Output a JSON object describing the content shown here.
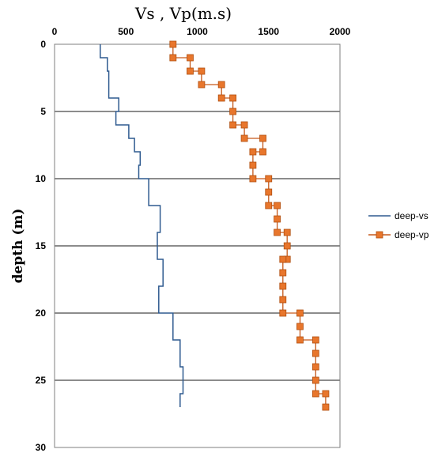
{
  "chart_data": {
    "type": "line",
    "title": "Vs , Vp(m.s)",
    "ylabel": "depth (m)",
    "xlabel": "",
    "x_axis_position": "top",
    "y_inverted": true,
    "xlim": [
      0,
      2000
    ],
    "ylim": [
      0,
      30
    ],
    "x_ticks": [
      "0",
      "500",
      "1000",
      "1500",
      "2000"
    ],
    "y_ticks": [
      "0",
      "5",
      "10",
      "15",
      "20",
      "25",
      "30"
    ],
    "grid": "horizontal major lines",
    "legend_position": "right",
    "series": [
      {
        "name": "deep-vs",
        "color": "#2e5a8f",
        "marker": "none",
        "points": [
          [
            320,
            0
          ],
          [
            320,
            1
          ],
          [
            370,
            1
          ],
          [
            370,
            2
          ],
          [
            380,
            2
          ],
          [
            380,
            3
          ],
          [
            380,
            4
          ],
          [
            450,
            4
          ],
          [
            450,
            5
          ],
          [
            430,
            5
          ],
          [
            430,
            6
          ],
          [
            520,
            6
          ],
          [
            520,
            7
          ],
          [
            560,
            7
          ],
          [
            560,
            8
          ],
          [
            600,
            8
          ],
          [
            600,
            9
          ],
          [
            590,
            9
          ],
          [
            590,
            10
          ],
          [
            660,
            10
          ],
          [
            660,
            12
          ],
          [
            740,
            12
          ],
          [
            740,
            14
          ],
          [
            720,
            14
          ],
          [
            720,
            16
          ],
          [
            760,
            16
          ],
          [
            760,
            18
          ],
          [
            730,
            18
          ],
          [
            730,
            20
          ],
          [
            830,
            20
          ],
          [
            830,
            22
          ],
          [
            880,
            22
          ],
          [
            880,
            24
          ],
          [
            900,
            24
          ],
          [
            900,
            26
          ],
          [
            880,
            26
          ],
          [
            880,
            27
          ]
        ]
      },
      {
        "name": "deep-vp",
        "color": "#c6591b",
        "marker": "square",
        "points": [
          [
            830,
            0
          ],
          [
            830,
            1
          ],
          [
            950,
            1
          ],
          [
            950,
            2
          ],
          [
            1030,
            2
          ],
          [
            1030,
            3
          ],
          [
            1170,
            3
          ],
          [
            1170,
            4
          ],
          [
            1250,
            4
          ],
          [
            1250,
            5
          ],
          [
            1250,
            6
          ],
          [
            1330,
            6
          ],
          [
            1330,
            7
          ],
          [
            1460,
            7
          ],
          [
            1460,
            8
          ],
          [
            1390,
            8
          ],
          [
            1390,
            9
          ],
          [
            1390,
            10
          ],
          [
            1500,
            10
          ],
          [
            1500,
            11
          ],
          [
            1500,
            12
          ],
          [
            1560,
            12
          ],
          [
            1560,
            13
          ],
          [
            1560,
            14
          ],
          [
            1630,
            14
          ],
          [
            1630,
            15
          ],
          [
            1630,
            16
          ],
          [
            1600,
            16
          ],
          [
            1600,
            17
          ],
          [
            1600,
            18
          ],
          [
            1600,
            19
          ],
          [
            1600,
            20
          ],
          [
            1720,
            20
          ],
          [
            1720,
            21
          ],
          [
            1720,
            22
          ],
          [
            1830,
            22
          ],
          [
            1830,
            23
          ],
          [
            1830,
            24
          ],
          [
            1830,
            25
          ],
          [
            1830,
            26
          ],
          [
            1900,
            26
          ],
          [
            1900,
            27
          ]
        ]
      }
    ]
  }
}
